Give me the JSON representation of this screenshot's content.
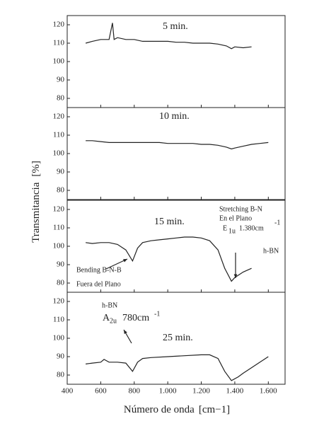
{
  "ylabel": "Transmitancia",
  "ylabel_unit": "[%]",
  "xlabel": "Número de onda",
  "xlabel_unit": "[cm−1]",
  "chart_data": [
    {
      "type": "line",
      "color": "#222",
      "xlim": [
        400,
        1700
      ],
      "ylim": [
        75,
        125
      ],
      "yticks": [
        80,
        90,
        100,
        110,
        120
      ],
      "annotations": [
        "5 min."
      ],
      "x": [
        510,
        550,
        600,
        650,
        670,
        680,
        700,
        750,
        800,
        850,
        900,
        950,
        1000,
        1050,
        1100,
        1150,
        1200,
        1250,
        1300,
        1350,
        1380,
        1400,
        1450,
        1500
      ],
      "values": [
        110,
        111,
        112,
        112,
        121,
        112,
        113,
        112,
        112,
        111,
        111,
        111,
        111,
        110.5,
        110.5,
        110,
        110,
        110,
        109.5,
        108.5,
        107,
        108,
        107.5,
        108
      ]
    },
    {
      "type": "line",
      "color": "#222",
      "xlim": [
        400,
        1700
      ],
      "ylim": [
        75,
        125
      ],
      "yticks": [
        80,
        90,
        100,
        110,
        120
      ],
      "annotations": [
        "10 min."
      ],
      "x": [
        510,
        550,
        600,
        650,
        700,
        750,
        800,
        850,
        900,
        950,
        1000,
        1050,
        1100,
        1150,
        1200,
        1250,
        1300,
        1350,
        1380,
        1400,
        1450,
        1500,
        1550,
        1600
      ],
      "values": [
        107,
        107,
        106.5,
        106,
        106,
        106,
        106,
        106,
        106,
        106,
        105.5,
        105.5,
        105.5,
        105.5,
        105,
        105,
        104.5,
        103.5,
        102.5,
        103,
        104,
        105,
        105.5,
        106
      ]
    },
    {
      "type": "line",
      "color": "#222",
      "xlim": [
        400,
        1700
      ],
      "ylim": [
        75,
        125
      ],
      "yticks": [
        80,
        90,
        100,
        110,
        120
      ],
      "annotations": [
        "15 min.",
        "Stretching B-N",
        "En el Plano",
        "E",
        "1u",
        "1.380cm",
        "-1",
        "h-BN",
        "Bending B-N-B",
        "Fuera del Plano"
      ],
      "x": [
        510,
        550,
        600,
        650,
        700,
        750,
        790,
        820,
        850,
        900,
        950,
        1000,
        1050,
        1100,
        1150,
        1200,
        1250,
        1300,
        1340,
        1380,
        1400,
        1450,
        1500
      ],
      "values": [
        102,
        101.5,
        102,
        102,
        101,
        98,
        92,
        99,
        102,
        103,
        103.5,
        104,
        104.5,
        105,
        105,
        104.5,
        103,
        98,
        88,
        81,
        83,
        86,
        88
      ]
    },
    {
      "type": "line",
      "color": "#222",
      "xlim": [
        400,
        1700
      ],
      "ylim": [
        75,
        125
      ],
      "yticks": [
        80,
        90,
        100,
        110,
        120
      ],
      "xticks": [
        400,
        600,
        800,
        {
          "value": 1000,
          "label": "1.000"
        },
        {
          "value": 1200,
          "label": "1.200"
        },
        {
          "value": 1400,
          "label": "1.400"
        },
        {
          "value": 1600,
          "label": "1.600"
        }
      ],
      "annotations": [
        "h-BN",
        "A",
        "2u",
        "780cm",
        "-1",
        "25 min."
      ],
      "x": [
        510,
        550,
        600,
        620,
        650,
        700,
        750,
        790,
        820,
        850,
        900,
        1000,
        1100,
        1200,
        1250,
        1300,
        1340,
        1380,
        1420,
        1450,
        1500,
        1550,
        1600
      ],
      "values": [
        86,
        86.5,
        87,
        88.5,
        87,
        87,
        86.5,
        82,
        87,
        89,
        89.5,
        90,
        90.5,
        91,
        91,
        89,
        82,
        77,
        79,
        81,
        84,
        87,
        90
      ]
    }
  ]
}
